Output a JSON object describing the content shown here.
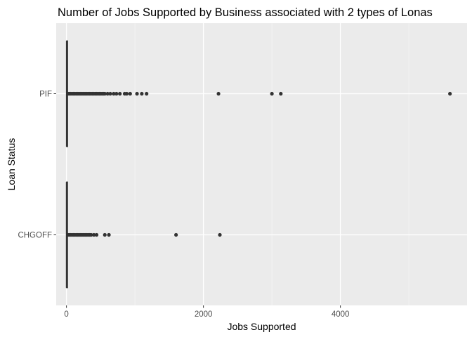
{
  "chart_data": {
    "type": "boxplot",
    "orientation": "horizontal",
    "title": "Number of Jobs Supported by Business associated with 2 types of Lonas",
    "xlabel": "Jobs Supported",
    "ylabel": "Loan Status",
    "xlim": [
      -150,
      5850
    ],
    "x_ticks": [
      0,
      2000,
      4000
    ],
    "x_minor_ticks": [
      1000,
      3000,
      5000
    ],
    "grid": true,
    "categories": [
      "CHGOFF",
      "PIF"
    ],
    "series": [
      {
        "category": "PIF",
        "box": {
          "min": 0,
          "q1": 2,
          "median": 4,
          "q3": 10,
          "max": 22
        },
        "outliers": [
          25,
          40,
          60,
          80,
          100,
          120,
          140,
          160,
          180,
          200,
          220,
          240,
          260,
          280,
          300,
          320,
          340,
          360,
          380,
          400,
          420,
          440,
          460,
          480,
          500,
          520,
          540,
          560,
          600,
          640,
          690,
          730,
          780,
          850,
          880,
          930,
          1030,
          1100,
          1170,
          2220,
          3000,
          3130,
          5600
        ]
      },
      {
        "category": "CHGOFF",
        "box": {
          "min": 0,
          "q1": 1,
          "median": 3,
          "q3": 8,
          "max": 18
        },
        "outliers": [
          22,
          40,
          60,
          80,
          100,
          120,
          140,
          160,
          180,
          200,
          220,
          240,
          260,
          280,
          300,
          320,
          340,
          360,
          400,
          440,
          560,
          620,
          1600,
          2240
        ]
      }
    ],
    "colors": {
      "panel": "#ebebeb",
      "grid_major": "#ffffff",
      "grid_minor": "#f5f5f5",
      "mark": "#333333",
      "tick": "#333333",
      "tick_label": "#4d4d4d"
    }
  }
}
